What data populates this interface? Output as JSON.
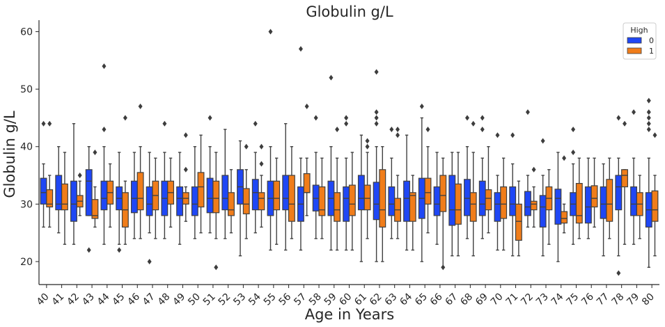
{
  "chart_data": {
    "type": "box",
    "title": "Globulin g/L",
    "xlabel": "Age in Years",
    "ylabel": "Globulin g/L",
    "ylim": [
      16,
      62
    ],
    "yticks": [
      20,
      30,
      40,
      50,
      60
    ],
    "categories": [
      "40",
      "41",
      "42",
      "43",
      "44",
      "45",
      "46",
      "47",
      "48",
      "49",
      "50",
      "51",
      "52",
      "53",
      "54",
      "55",
      "56",
      "57",
      "58",
      "59",
      "60",
      "61",
      "62",
      "63",
      "64",
      "65",
      "66",
      "67",
      "68",
      "69",
      "70",
      "71",
      "72",
      "73",
      "74",
      "75",
      "76",
      "77",
      "78",
      "79",
      "80"
    ],
    "legend": {
      "title": "High",
      "placement": "top-right"
    },
    "series": [
      {
        "name": "0",
        "color": "#1f47f5",
        "boxes": [
          {
            "lw": 26,
            "q1": 30,
            "med": 32,
            "q3": 34.5,
            "uw": 37,
            "out": [
              44
            ]
          },
          {
            "lw": 25,
            "q1": 29,
            "med": 30,
            "q3": 35,
            "uw": 40,
            "out": []
          },
          {
            "lw": 23,
            "q1": 27,
            "med": 30,
            "q3": 34,
            "uw": 44,
            "out": []
          },
          {
            "lw": 28,
            "q1": 28,
            "med": 34,
            "q3": 36,
            "uw": 40,
            "out": [
              22
            ]
          },
          {
            "lw": 23,
            "q1": 29,
            "med": 31,
            "q3": 34,
            "uw": 40,
            "out": [
              43,
              54
            ]
          },
          {
            "lw": 23,
            "q1": 29,
            "med": 31,
            "q3": 33,
            "uw": 39,
            "out": [
              22
            ]
          },
          {
            "lw": 24,
            "q1": 28.5,
            "med": 31,
            "q3": 34,
            "uw": 39,
            "out": []
          },
          {
            "lw": 25,
            "q1": 28,
            "med": 30,
            "q3": 33,
            "uw": 39,
            "out": [
              20
            ]
          },
          {
            "lw": 24,
            "q1": 28,
            "med": 31,
            "q3": 34,
            "uw": 39,
            "out": [
              44
            ]
          },
          {
            "lw": 23,
            "q1": 28,
            "med": 31,
            "q3": 33,
            "uw": 39,
            "out": []
          },
          {
            "lw": 24,
            "q1": 28,
            "med": 30,
            "q3": 33,
            "uw": 40,
            "out": []
          },
          {
            "lw": 25,
            "q1": 28.5,
            "med": 31,
            "q3": 34.5,
            "uw": 40,
            "out": [
              45
            ]
          },
          {
            "lw": 24,
            "q1": 29,
            "med": 31,
            "q3": 35,
            "uw": 43,
            "out": []
          },
          {
            "lw": 21,
            "q1": 30,
            "med": 33,
            "q3": 36,
            "uw": 41,
            "out": []
          },
          {
            "lw": 25,
            "q1": 29,
            "med": 32,
            "q3": 34.3,
            "uw": 39,
            "out": [
              44
            ]
          },
          {
            "lw": 22,
            "q1": 28,
            "med": 31,
            "q3": 34,
            "uw": 40,
            "out": [
              60
            ]
          },
          {
            "lw": 22,
            "q1": 29,
            "med": 31,
            "q3": 35,
            "uw": 44,
            "out": []
          },
          {
            "lw": 22,
            "q1": 27,
            "med": 30,
            "q3": 33,
            "uw": 38,
            "out": [
              57
            ]
          },
          {
            "lw": 24,
            "q1": 28.8,
            "med": 31,
            "q3": 33.3,
            "uw": 39,
            "out": [
              45
            ]
          },
          {
            "lw": 22,
            "q1": 28,
            "med": 31,
            "q3": 34,
            "uw": 40,
            "out": [
              52
            ]
          },
          {
            "lw": 22,
            "q1": 27,
            "med": 31,
            "q3": 33,
            "uw": 38,
            "out": [
              44,
              45
            ]
          },
          {
            "lw": 20,
            "q1": 29,
            "med": 31,
            "q3": 35,
            "uw": 42,
            "out": []
          },
          {
            "lw": 20,
            "q1": 27.3,
            "med": 30,
            "q3": 33.8,
            "uw": 40,
            "out": [
              44,
              45,
              46,
              53
            ]
          },
          {
            "lw": 24,
            "q1": 28,
            "med": 30,
            "q3": 33,
            "uw": 38,
            "out": [
              43
            ]
          },
          {
            "lw": 22,
            "q1": 27,
            "med": 31,
            "q3": 34,
            "uw": 42,
            "out": []
          },
          {
            "lw": 20,
            "q1": 27.5,
            "med": 31,
            "q3": 34.5,
            "uw": 45,
            "out": [
              47
            ]
          },
          {
            "lw": 23,
            "q1": 28,
            "med": 30,
            "q3": 33,
            "uw": 39,
            "out": []
          },
          {
            "lw": 21,
            "q1": 26.3,
            "med": 29,
            "q3": 35,
            "uw": 39,
            "out": []
          },
          {
            "lw": 24,
            "q1": 28,
            "med": 31,
            "q3": 34.3,
            "uw": 40,
            "out": [
              45
            ]
          },
          {
            "lw": 24,
            "q1": 28,
            "med": 30,
            "q3": 34,
            "uw": 38,
            "out": [
              43,
              45
            ]
          },
          {
            "lw": 22,
            "q1": 27,
            "med": 30,
            "q3": 32,
            "uw": 35,
            "out": [
              42
            ]
          },
          {
            "lw": 21,
            "q1": 28,
            "med": 30,
            "q3": 33,
            "uw": 37,
            "out": [
              42
            ]
          },
          {
            "lw": 26,
            "q1": 28,
            "med": 29.5,
            "q3": 32.2,
            "uw": 35,
            "out": [
              46
            ]
          },
          {
            "lw": 21,
            "q1": 26,
            "med": 29.5,
            "q3": 31.5,
            "uw": 35,
            "out": [
              41
            ]
          },
          {
            "lw": 20,
            "q1": 26.5,
            "med": 31,
            "q3": 32.6,
            "uw": 39,
            "out": []
          },
          {
            "lw": 23,
            "q1": 28,
            "med": 30,
            "q3": 32,
            "uw": 37,
            "out": [
              39,
              43
            ]
          },
          {
            "lw": 24,
            "q1": 26.7,
            "med": 29.5,
            "q3": 33,
            "uw": 38,
            "out": []
          },
          {
            "lw": 21,
            "q1": 27.5,
            "med": 30,
            "q3": 33,
            "uw": 37,
            "out": []
          },
          {
            "lw": 21,
            "q1": 29,
            "med": 33,
            "q3": 35,
            "uw": 38,
            "out": [
              18,
              45
            ]
          },
          {
            "lw": 23,
            "q1": 28,
            "med": 30,
            "q3": 33,
            "uw": 38,
            "out": [
              46
            ]
          },
          {
            "lw": 19,
            "q1": 26,
            "med": 29,
            "q3": 32,
            "uw": 38,
            "out": [
              43,
              44,
              45,
              46,
              48
            ]
          }
        ]
      },
      {
        "name": "1",
        "color": "#f07d1a",
        "boxes": [
          {
            "lw": 26,
            "q1": 29.5,
            "med": 30,
            "q3": 32.5,
            "uw": 35,
            "out": [
              44
            ]
          },
          {
            "lw": 23,
            "q1": 29,
            "med": 30,
            "q3": 33.5,
            "uw": 39,
            "out": []
          },
          {
            "lw": 28,
            "q1": 29.5,
            "med": 30.5,
            "q3": 31.5,
            "uw": 34,
            "out": [
              35
            ]
          },
          {
            "lw": 26,
            "q1": 27.5,
            "med": 28,
            "q3": 30.8,
            "uw": 33,
            "out": [
              39
            ]
          },
          {
            "lw": 26,
            "q1": 30,
            "med": 32,
            "q3": 34,
            "uw": 37,
            "out": []
          },
          {
            "lw": 23,
            "q1": 26,
            "med": 29,
            "q3": 32,
            "uw": 34,
            "out": [
              45
            ]
          },
          {
            "lw": 24,
            "q1": 29,
            "med": 31,
            "q3": 35.5,
            "uw": 40,
            "out": [
              47
            ]
          },
          {
            "lw": 24,
            "q1": 29,
            "med": 31.5,
            "q3": 34,
            "uw": 38,
            "out": []
          },
          {
            "lw": 26,
            "q1": 30,
            "med": 32,
            "q3": 34,
            "uw": 38,
            "out": []
          },
          {
            "lw": 27,
            "q1": 30,
            "med": 31,
            "q3": 32,
            "uw": 33,
            "out": [
              36,
              42
            ]
          },
          {
            "lw": 25,
            "q1": 29.5,
            "med": 33,
            "q3": 35.5,
            "uw": 42,
            "out": []
          },
          {
            "lw": 24,
            "q1": 28.5,
            "med": 31,
            "q3": 34,
            "uw": 39,
            "out": [
              19
            ]
          },
          {
            "lw": 25,
            "q1": 28,
            "med": 29,
            "q3": 32,
            "uw": 36,
            "out": []
          },
          {
            "lw": 24,
            "q1": 28.3,
            "med": 30,
            "q3": 32.7,
            "uw": 36,
            "out": [
              40
            ]
          },
          {
            "lw": 26,
            "q1": 29,
            "med": 31,
            "q3": 32,
            "uw": 35,
            "out": [
              37,
              40
            ]
          },
          {
            "lw": 23,
            "q1": 29,
            "med": 31,
            "q3": 34,
            "uw": 38,
            "out": []
          },
          {
            "lw": 24,
            "q1": 27,
            "med": 30,
            "q3": 35,
            "uw": 40,
            "out": []
          },
          {
            "lw": 28,
            "q1": 32,
            "med": 32,
            "q3": 35.3,
            "uw": 38,
            "out": [
              47
            ]
          },
          {
            "lw": 24,
            "q1": 28,
            "med": 29,
            "q3": 33,
            "uw": 38,
            "out": []
          },
          {
            "lw": 22,
            "q1": 27,
            "med": 29,
            "q3": 32,
            "uw": 38,
            "out": [
              43
            ]
          },
          {
            "lw": 22,
            "q1": 28,
            "med": 30,
            "q3": 33.3,
            "uw": 39,
            "out": []
          },
          {
            "lw": 24,
            "q1": 29,
            "med": 31,
            "q3": 33.3,
            "uw": 39,
            "out": [
              40,
              41
            ]
          },
          {
            "lw": 20,
            "q1": 26,
            "med": 29,
            "q3": 36,
            "uw": 40,
            "out": []
          },
          {
            "lw": 24,
            "q1": 27,
            "med": 29,
            "q3": 31,
            "uw": 35,
            "out": [
              42,
              43
            ]
          },
          {
            "lw": 22,
            "q1": 27,
            "med": 31.5,
            "q3": 32,
            "uw": 35,
            "out": []
          },
          {
            "lw": 25,
            "q1": 30,
            "med": 32,
            "q3": 34.5,
            "uw": 40,
            "out": [
              43
            ]
          },
          {
            "lw": 19,
            "q1": 28.7,
            "med": 31.5,
            "q3": 35,
            "uw": 38,
            "out": [
              19
            ]
          },
          {
            "lw": 21,
            "q1": 26.5,
            "med": 29,
            "q3": 33.5,
            "uw": 39,
            "out": []
          },
          {
            "lw": 21,
            "q1": 27,
            "med": 30,
            "q3": 32,
            "uw": 39,
            "out": [
              44
            ]
          },
          {
            "lw": 25,
            "q1": 29,
            "med": 31,
            "q3": 32.5,
            "uw": 40,
            "out": []
          },
          {
            "lw": 22,
            "q1": 27.5,
            "med": 30,
            "q3": 33,
            "uw": 38,
            "out": []
          },
          {
            "lw": 21,
            "q1": 23.7,
            "med": 27,
            "q3": 30,
            "uw": 34,
            "out": []
          },
          {
            "lw": 26,
            "q1": 29,
            "med": 30,
            "q3": 30.5,
            "uw": 33,
            "out": [
              36
            ]
          },
          {
            "lw": 23,
            "q1": 29,
            "med": 31,
            "q3": 33,
            "uw": 36,
            "out": []
          },
          {
            "lw": 25,
            "q1": 26.7,
            "med": 27.5,
            "q3": 28.7,
            "uw": 30,
            "out": [
              38
            ]
          },
          {
            "lw": 24,
            "q1": 26.7,
            "med": 28,
            "q3": 33.6,
            "uw": 38,
            "out": []
          },
          {
            "lw": 26,
            "q1": 29.5,
            "med": 31,
            "q3": 33.2,
            "uw": 38,
            "out": []
          },
          {
            "lw": 24,
            "q1": 27,
            "med": 30,
            "q3": 34.3,
            "uw": 38,
            "out": []
          },
          {
            "lw": 23,
            "q1": 33,
            "med": 35,
            "q3": 36,
            "uw": 36,
            "out": [
              44
            ]
          },
          {
            "lw": 24,
            "q1": 28,
            "med": 30,
            "q3": 32,
            "uw": 35,
            "out": []
          },
          {
            "lw": 21,
            "q1": 27,
            "med": 29,
            "q3": 32.3,
            "uw": 35,
            "out": [
              42
            ]
          }
        ]
      }
    ]
  }
}
